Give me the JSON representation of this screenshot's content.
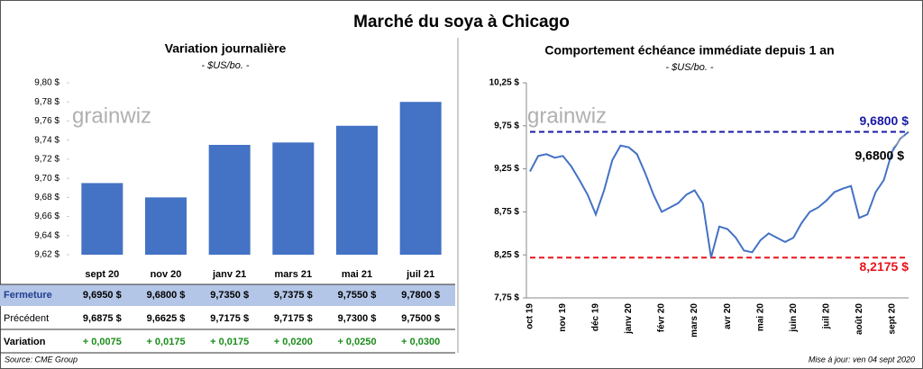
{
  "title": "Marché du soya à Chicago",
  "watermark": "grainwiz",
  "chart_data": [
    {
      "type": "bar",
      "title": "Variation journalière",
      "subtitle": "- $US/bo. -",
      "categories": [
        "sept 20",
        "nov 20",
        "janv 21",
        "mars 21",
        "mai 21",
        "juil 21"
      ],
      "values": [
        9.695,
        9.68,
        9.735,
        9.7375,
        9.755,
        9.78
      ],
      "color": "#4472c4",
      "grid": false,
      "ylim": [
        9.62,
        9.8
      ],
      "yticks": [
        {
          "value": 9.62,
          "label": "9,62 $"
        },
        {
          "value": 9.64,
          "label": "9,64 $"
        },
        {
          "value": 9.66,
          "label": "9,66 $"
        },
        {
          "value": 9.68,
          "label": "9,68 $"
        },
        {
          "value": 9.7,
          "label": "9,70 $"
        },
        {
          "value": 9.72,
          "label": "9,72 $"
        },
        {
          "value": 9.74,
          "label": "9,74 $"
        },
        {
          "value": 9.76,
          "label": "9,76 $"
        },
        {
          "value": 9.78,
          "label": "9,78 $"
        },
        {
          "value": 9.8,
          "label": "9,80 $"
        }
      ]
    },
    {
      "type": "line",
      "title": "Comportement  échéance immédiate depuis 1 an",
      "subtitle": "- $US/bo. -",
      "categories": [
        "oct 19",
        null,
        null,
        null,
        "nov 19",
        null,
        null,
        null,
        "déc 19",
        null,
        null,
        null,
        "janv 20",
        null,
        null,
        null,
        "févr 20",
        null,
        null,
        null,
        "mars 20",
        null,
        null,
        null,
        "avr 20",
        null,
        null,
        null,
        "mai 20",
        null,
        null,
        null,
        "juin 20",
        null,
        null,
        null,
        "juil 20",
        null,
        null,
        null,
        "août 20",
        null,
        null,
        null,
        "sept 20",
        null,
        null
      ],
      "values": [
        9.22,
        9.4,
        9.42,
        9.38,
        9.4,
        9.28,
        9.12,
        8.95,
        8.72,
        9.0,
        9.35,
        9.52,
        9.5,
        9.42,
        9.2,
        8.95,
        8.75,
        8.8,
        8.85,
        8.95,
        9.0,
        8.85,
        8.22,
        8.58,
        8.55,
        8.45,
        8.3,
        8.28,
        8.42,
        8.5,
        8.45,
        8.4,
        8.45,
        8.62,
        8.75,
        8.8,
        8.88,
        8.98,
        9.02,
        9.05,
        8.68,
        8.72,
        8.98,
        9.12,
        9.45,
        9.6,
        9.68
      ],
      "last_value_label": "9,6800 $",
      "color": "#4472c4",
      "grid": false,
      "ylim": [
        7.75,
        10.25
      ],
      "yticks": [
        {
          "value": 7.75,
          "label": "7,75 $"
        },
        {
          "value": 8.25,
          "label": "8,25 $"
        },
        {
          "value": 8.75,
          "label": "8,75 $"
        },
        {
          "value": 9.25,
          "label": "9,25 $"
        },
        {
          "value": 9.75,
          "label": "9,75 $"
        },
        {
          "value": 10.25,
          "label": "10,25 $"
        }
      ],
      "reference_lines": [
        {
          "value": 9.68,
          "label": "9,6800 $",
          "color": "#1a1aa6"
        },
        {
          "value": 8.2175,
          "label": "8,2175 $",
          "color": "#e8141b"
        }
      ]
    }
  ],
  "table": {
    "rows": [
      {
        "label": "Fermeture",
        "cells": [
          "9,6950  $",
          "9,6800  $",
          "9,7350  $",
          "9,7375  $",
          "9,7550  $",
          "9,7800  $"
        ]
      },
      {
        "label": "Précédent",
        "cells": [
          "9,6875  $",
          "9,6625  $",
          "9,7175  $",
          "9,7175  $",
          "9,7300  $",
          "9,7500  $"
        ]
      },
      {
        "label": "Variation",
        "cells": [
          "+ 0,0075",
          "+ 0,0175",
          "+ 0,0175",
          "+ 0,0200",
          "+ 0,0250",
          "+ 0,0300"
        ]
      }
    ]
  },
  "source": "Source: CME Group",
  "updated": "Mise à jour: ven 04 sept 2020"
}
